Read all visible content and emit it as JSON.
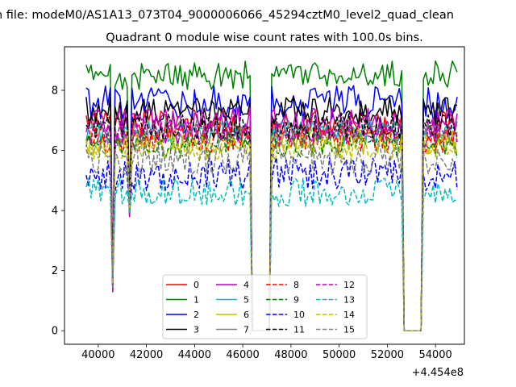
{
  "figure": {
    "suptitle": "n file: modeM0/AS1A13_073T04_9000006066_45294cztM0_level2_quad_clean",
    "title": "Quadrant 0 module wise count rates with 100.0s bins."
  },
  "chart_data": {
    "type": "line",
    "title": "Quadrant 0 module wise count rates with 100.0s bins.",
    "xlabel": "",
    "ylabel": "",
    "x_offset_label": "+4.454e8",
    "xlim": [
      38600,
      55200
    ],
    "ylim": [
      -0.45,
      9.45
    ],
    "x_ticks": [
      40000,
      42000,
      44000,
      46000,
      48000,
      50000,
      52000,
      54000
    ],
    "x_tick_labels": [
      "40000",
      "42000",
      "44000",
      "46000",
      "48000",
      "50000",
      "52000",
      "54000"
    ],
    "y_ticks": [
      0,
      2,
      4,
      6,
      8
    ],
    "y_tick_labels": [
      "0",
      "2",
      "4",
      "6",
      "8"
    ],
    "grid": false,
    "legend_placement": "bottom-center",
    "segments": [
      [
        39500,
        40500
      ],
      [
        40700,
        41200
      ],
      [
        41400,
        46400
      ],
      [
        47100,
        52700
      ],
      [
        53400,
        54900
      ]
    ],
    "dips": [
      {
        "start": 40500,
        "end": 40700,
        "min": 1.3
      },
      {
        "start": 41200,
        "end": 41400,
        "min": 3.8
      },
      {
        "start": 46400,
        "end": 47100,
        "min": 0
      },
      {
        "start": 52700,
        "end": 53400,
        "min": 0
      }
    ],
    "series": [
      {
        "name": "0",
        "color": "#ff0000",
        "style": "solid",
        "level": 6.9,
        "noise": 0.28
      },
      {
        "name": "1",
        "color": "#008000",
        "style": "solid",
        "level": 8.5,
        "noise": 0.3
      },
      {
        "name": "2",
        "color": "#0000ff",
        "style": "solid",
        "level": 7.6,
        "noise": 0.35
      },
      {
        "name": "3",
        "color": "#000000",
        "style": "solid",
        "level": 7.3,
        "noise": 0.3
      },
      {
        "name": "4",
        "color": "#bf00bf",
        "style": "solid",
        "level": 7.0,
        "noise": 0.28
      },
      {
        "name": "5",
        "color": "#00bfbf",
        "style": "solid",
        "level": 6.6,
        "noise": 0.25
      },
      {
        "name": "6",
        "color": "#bfbf00",
        "style": "solid",
        "level": 6.3,
        "noise": 0.28
      },
      {
        "name": "7",
        "color": "#808080",
        "style": "solid",
        "level": 6.6,
        "noise": 0.28
      },
      {
        "name": "8",
        "color": "#ff0000",
        "style": "dashed",
        "level": 6.4,
        "noise": 0.3
      },
      {
        "name": "9",
        "color": "#008000",
        "style": "dashed",
        "level": 6.2,
        "noise": 0.28
      },
      {
        "name": "10",
        "color": "#0000ff",
        "style": "dashed",
        "level": 5.2,
        "noise": 0.35
      },
      {
        "name": "11",
        "color": "#000000",
        "style": "dashed",
        "level": 6.8,
        "noise": 0.28
      },
      {
        "name": "12",
        "color": "#bf00bf",
        "style": "dashed",
        "level": 6.6,
        "noise": 0.28
      },
      {
        "name": "13",
        "color": "#00bfbf",
        "style": "dashed",
        "level": 4.6,
        "noise": 0.3
      },
      {
        "name": "14",
        "color": "#bfbf00",
        "style": "dashed",
        "level": 6.1,
        "noise": 0.28
      },
      {
        "name": "15",
        "color": "#808080",
        "style": "dashed",
        "level": 5.7,
        "noise": 0.32
      }
    ]
  }
}
